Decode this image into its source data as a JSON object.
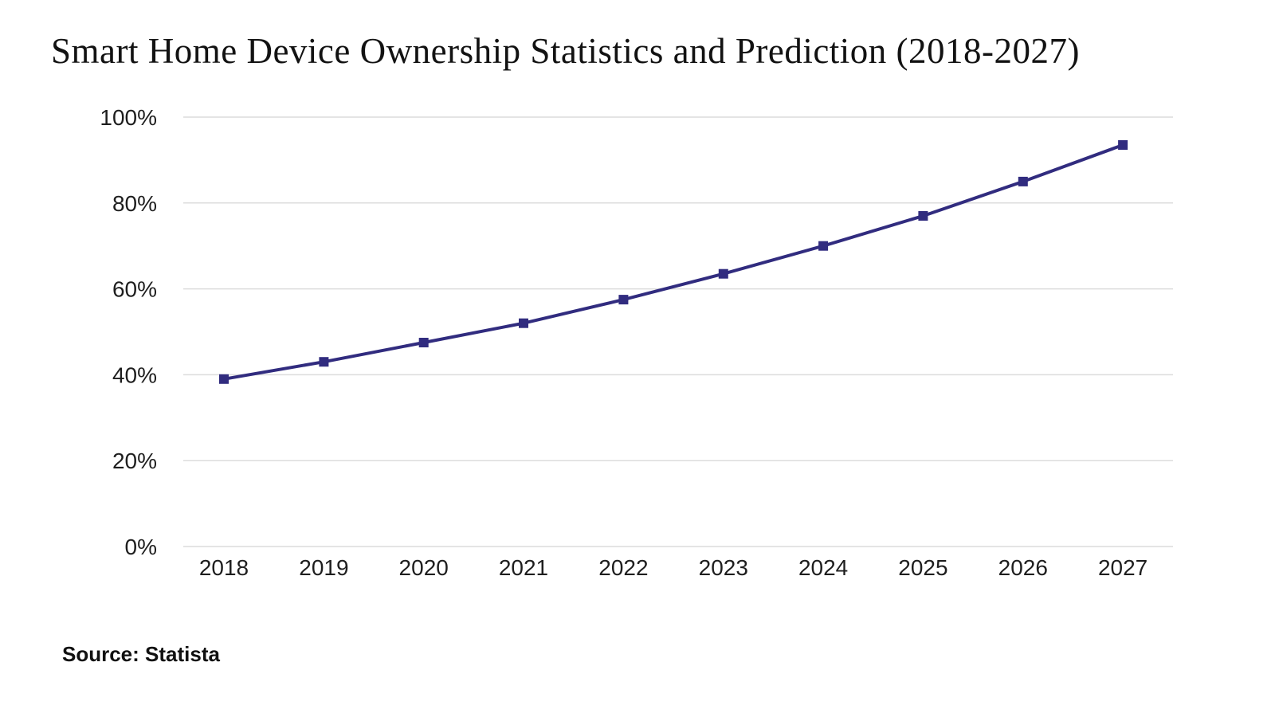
{
  "page": {
    "title": "Smart Home Device Ownership Statistics and Prediction (2018-2027)",
    "source_label": "Source: Statista"
  },
  "chart_data": {
    "type": "line",
    "title": "Smart Home Device Ownership Statistics and Prediction (2018-2027)",
    "xlabel": "",
    "ylabel": "",
    "categories": [
      "2018",
      "2019",
      "2020",
      "2021",
      "2022",
      "2023",
      "2024",
      "2025",
      "2026",
      "2027"
    ],
    "series": [
      {
        "values": [
          39,
          43,
          47.5,
          52,
          57.5,
          63.5,
          70,
          77,
          85,
          93.5
        ],
        "color": "#312C7F",
        "marker": "square"
      }
    ],
    "ylim": [
      0,
      100
    ],
    "yticks": [
      0,
      20,
      40,
      60,
      80,
      100
    ],
    "ytick_labels": [
      "0%",
      "20%",
      "40%",
      "60%",
      "80%",
      "100%"
    ],
    "grid": "horizontal",
    "grid_color": "#dcdcdc",
    "legend": "none",
    "source": "Source: Statista"
  }
}
